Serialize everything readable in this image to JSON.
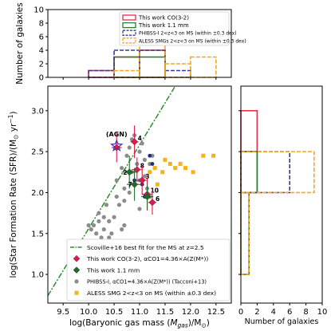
{
  "chart_data": [
    {
      "id": "top_histogram",
      "type": "histogram",
      "ylabel": "Number of galaxies",
      "xlim": [
        9.2,
        12.8
      ],
      "ylim": [
        0,
        10
      ],
      "yticks": [
        0,
        2,
        4,
        6,
        8,
        10
      ],
      "legend_position": "upper-right",
      "series": [
        {
          "name": "This work CO(3-2)",
          "color": "#e0304a",
          "style": "solid",
          "bins": [
            10.0,
            10.5,
            11.0,
            11.5
          ],
          "counts": [
            1,
            3,
            4
          ]
        },
        {
          "name": "This work 1.1 mm",
          "color": "#2e7d2e",
          "style": "solid",
          "bins": [
            10.5,
            11.0,
            11.5
          ],
          "counts": [
            3,
            3
          ]
        },
        {
          "name": "PHIBSS-I 2<z<3 on MS (within ±0.3 dex)",
          "color": "#3a3a8c",
          "style": "dashed",
          "bins": [
            10.0,
            10.5,
            11.0,
            11.5,
            12.0
          ],
          "counts": [
            1,
            4,
            4,
            1
          ]
        },
        {
          "name": "ALESS SMGs 2<z<3 on MS (within ±0.3 dex)",
          "color": "#f5a623",
          "style": "dashed",
          "bins": [
            10.5,
            11.0,
            11.5,
            12.0,
            12.5
          ],
          "counts": [
            1,
            5,
            2,
            3
          ]
        }
      ]
    },
    {
      "id": "main_scatter",
      "type": "scatter",
      "xlabel_parts": {
        "pre": "log(Baryonic gas mass (",
        "sym": "M",
        "sub": "gas",
        "post": ")/M",
        "post_sub": "⊙",
        "tail": ")"
      },
      "ylabel_parts": {
        "pre": "log(Star Formation Rate (SFR)/(M",
        "sub": "⊙",
        "post": " yr",
        "sup": "−1",
        "tail": ")"
      },
      "xlim": [
        9.2,
        12.8
      ],
      "ylim": [
        0.65,
        3.3
      ],
      "xticks": [
        9.5,
        10.0,
        10.5,
        11.0,
        11.5,
        12.0,
        12.5
      ],
      "xtick_labels": [
        "9.5",
        "10.0",
        "10.5",
        "11.0",
        "11.5",
        "12.0",
        "12.5"
      ],
      "yticks": [
        1.0,
        1.5,
        2.0,
        2.5,
        3.0
      ],
      "ytick_labels": [
        "1.0",
        "1.5",
        "2.0",
        "2.5",
        "3.0"
      ],
      "annotation": "(AGN)",
      "ms_line": {
        "name": "Scoville+16 best fit for the MS at z=2.5",
        "color": "#2e8b2e",
        "points": [
          [
            9.2,
            0.74
          ],
          [
            11.7,
            3.3
          ]
        ]
      },
      "phibss": {
        "name": "PHIBSS-I, αCO1=4.36×A(Z(M*)) (Tacconi+13)",
        "color": "#8c8c8c",
        "points": [
          [
            10.0,
            1.6
          ],
          [
            10.05,
            1.55
          ],
          [
            10.1,
            1.6
          ],
          [
            10.15,
            1.5
          ],
          [
            10.2,
            1.65
          ],
          [
            10.2,
            1.75
          ],
          [
            10.25,
            1.45
          ],
          [
            10.3,
            1.7
          ],
          [
            10.3,
            1.55
          ],
          [
            10.35,
            1.85
          ],
          [
            10.35,
            1.3
          ],
          [
            10.4,
            1.65
          ],
          [
            10.4,
            1.45
          ],
          [
            10.45,
            1.5
          ],
          [
            10.45,
            1.15
          ],
          [
            10.5,
            1.35
          ],
          [
            10.5,
            1.7
          ],
          [
            10.55,
            1.95
          ],
          [
            10.55,
            2.15
          ],
          [
            10.6,
            1.85
          ],
          [
            10.6,
            1.25
          ],
          [
            10.65,
            2.3
          ],
          [
            10.65,
            1.55
          ],
          [
            10.7,
            2.05
          ],
          [
            10.7,
            1.9
          ],
          [
            10.75,
            2.45
          ],
          [
            10.8,
            2.55
          ],
          [
            10.8,
            2.0
          ],
          [
            10.85,
            2.25
          ],
          [
            10.85,
            2.65
          ],
          [
            10.9,
            2.7
          ],
          [
            10.95,
            2.35
          ],
          [
            11.0,
            2.5
          ],
          [
            11.0,
            2.15
          ],
          [
            11.05,
            2.6
          ],
          [
            11.1,
            2.4
          ],
          [
            11.1,
            2.2
          ],
          [
            11.15,
            2.05
          ],
          [
            11.2,
            2.35
          ],
          [
            11.2,
            1.95
          ],
          [
            11.25,
            2.45
          ],
          [
            11.3,
            2.3
          ],
          [
            10.4,
            1.05
          ],
          [
            10.5,
            1.1
          ],
          [
            10.7,
            1.6
          ],
          [
            11.0,
            1.8
          ]
        ]
      },
      "aless": {
        "name": "ALESS SMG 2<z<3 on MS (within ±0.3 dex)",
        "color": "#f5b31a",
        "points": [
          [
            11.2,
            2.25
          ],
          [
            11.3,
            2.3
          ],
          [
            11.45,
            2.25
          ],
          [
            11.6,
            2.35
          ],
          [
            11.7,
            2.3
          ],
          [
            11.8,
            2.35
          ],
          [
            11.9,
            2.3
          ],
          [
            12.05,
            2.25
          ],
          [
            12.25,
            2.45
          ],
          [
            12.45,
            2.45
          ],
          [
            11.5,
            2.4
          ],
          [
            11.35,
            2.1
          ]
        ]
      },
      "navy_points": {
        "color": "#1e2a7a",
        "points": [
          [
            10.9,
            2.15
          ],
          [
            11.2,
            2.45
          ],
          [
            11.25,
            2.35
          ],
          [
            11.05,
            2.1
          ],
          [
            11.1,
            1.95
          ]
        ]
      },
      "co32": {
        "name": "This work CO(3-2), αCO1=4.36×A(Z(M*))",
        "color": "#e0184d",
        "points": [
          {
            "x": 10.55,
            "y": 2.55,
            "label": "",
            "xerr": 0.1,
            "yerr": 0.18
          },
          {
            "x": 10.9,
            "y": 2.62,
            "label": "4",
            "xerr": 0.08,
            "yerr": 0.2
          },
          {
            "x": 10.95,
            "y": 2.28,
            "label": "8",
            "xerr": 0.1,
            "yerr": 0.15
          },
          {
            "x": 11.05,
            "y": 2.15,
            "label": "3",
            "xerr": 0.1,
            "yerr": 0.18
          },
          {
            "x": 11.15,
            "y": 1.98,
            "label": "10",
            "xerr": 0.1,
            "yerr": 0.2
          },
          {
            "x": 11.25,
            "y": 1.88,
            "label": "6",
            "xerr": 0.08,
            "yerr": 0.15
          }
        ]
      },
      "mm11": {
        "name": "This work 1.1 mm",
        "color": "#1f6b2a",
        "points": [
          {
            "x": 10.8,
            "y": 2.25,
            "label": "2",
            "xerr": 0.15,
            "yerr": 0.2
          },
          {
            "x": 10.9,
            "y": 2.1,
            "label": "7",
            "xerr": 0.15,
            "yerr": 0.2
          },
          {
            "x": 11.15,
            "y": 1.95,
            "label": "",
            "xerr": 0.12,
            "yerr": 0.15
          }
        ]
      },
      "agn_star": {
        "x": 10.55,
        "y": 2.57,
        "color": "#3a3ab0"
      }
    },
    {
      "id": "right_histogram",
      "type": "histogram",
      "orientation": "horizontal",
      "xlabel": "Number of galaxies",
      "xlim": [
        0,
        10
      ],
      "xticks": [
        0,
        2,
        4,
        6,
        8,
        10
      ],
      "series": [
        {
          "name": "This work CO(3-2)",
          "color": "#e0304a",
          "style": "solid",
          "bins": [
            2.0,
            2.5,
            3.0
          ],
          "counts": [
            2,
            2
          ]
        },
        {
          "name": "This work 1.1 mm",
          "color": "#2e7d2e",
          "style": "solid",
          "bins": [
            1.0,
            2.0,
            2.5
          ],
          "counts": [
            1,
            2
          ]
        },
        {
          "name": "PHIBSS-I",
          "color": "#3a3a8c",
          "style": "dashed",
          "bins": [
            1.0,
            2.0,
            2.5
          ],
          "counts": [
            1,
            6
          ]
        },
        {
          "name": "ALESS",
          "color": "#f5a623",
          "style": "dashed",
          "bins": [
            1.0,
            2.0,
            2.5
          ],
          "counts": [
            1,
            9
          ]
        }
      ]
    }
  ]
}
